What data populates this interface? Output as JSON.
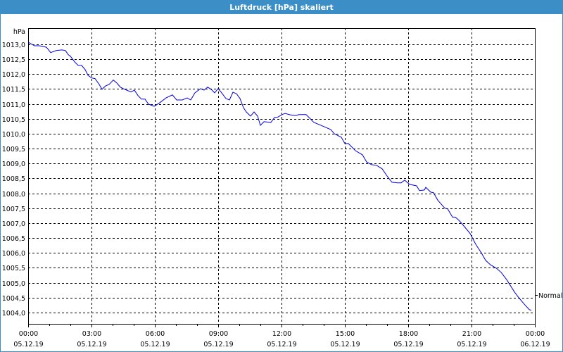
{
  "window": {
    "title": "Luftdruck [hPa] skaliert"
  },
  "colors": {
    "titlebar": "#3c8fc6",
    "line": "#0000e0",
    "grid": "#000000"
  },
  "chart_data": {
    "type": "line",
    "title": "Luftdruck [hPa] skaliert",
    "ylabel": "hPa",
    "xlabel": "",
    "grid": true,
    "grid_style": "dashed",
    "xlim": [
      "05.12.19 00:00",
      "06.12.19 00:00"
    ],
    "ylim": [
      1003.62,
      1013.54
    ],
    "x_ticks": [
      {
        "time": "00:00",
        "date": "05.12.19"
      },
      {
        "time": "03:00",
        "date": "05.12.19"
      },
      {
        "time": "06:00",
        "date": "05.12.19"
      },
      {
        "time": "09:00",
        "date": "05.12.19"
      },
      {
        "time": "12:00",
        "date": "05.12.19"
      },
      {
        "time": "15:00",
        "date": "05.12.19"
      },
      {
        "time": "18:00",
        "date": "05.12.19"
      },
      {
        "time": "21:00",
        "date": "05.12.19"
      },
      {
        "time": "00:00",
        "date": "06.12.19"
      }
    ],
    "y_ticks": [
      "1004,0",
      "1004,5",
      "1005,0",
      "1005,5",
      "1006,0",
      "1006,5",
      "1007,0",
      "1007,5",
      "1008,0",
      "1008,5",
      "1009,0",
      "1009,5",
      "1010,0",
      "1010,5",
      "1011,0",
      "1011,5",
      "1012,0",
      "1012,5",
      "1013,0"
    ],
    "annotations": [
      {
        "label": "Normal",
        "value": 1004.6,
        "side": "right"
      }
    ],
    "series": [
      {
        "date": "05.12.19",
        "points": [
          [
            "00:00",
            1013.07
          ],
          [
            "00:18",
            1012.95
          ],
          [
            "00:32",
            1012.95
          ],
          [
            "00:52",
            1012.9
          ],
          [
            "01:04",
            1012.72
          ],
          [
            "01:20",
            1012.79
          ],
          [
            "01:36",
            1012.81
          ],
          [
            "01:46",
            1012.79
          ],
          [
            "01:54",
            1012.65
          ],
          [
            "02:00",
            1012.6
          ],
          [
            "02:12",
            1012.41
          ],
          [
            "02:22",
            1012.29
          ],
          [
            "02:32",
            1012.29
          ],
          [
            "02:42",
            1012.15
          ],
          [
            "02:50",
            1011.96
          ],
          [
            "03:00",
            1011.87
          ],
          [
            "03:10",
            1011.85
          ],
          [
            "03:22",
            1011.65
          ],
          [
            "03:30",
            1011.49
          ],
          [
            "03:40",
            1011.6
          ],
          [
            "03:50",
            1011.65
          ],
          [
            "04:02",
            1011.8
          ],
          [
            "04:12",
            1011.7
          ],
          [
            "04:22",
            1011.56
          ],
          [
            "04:34",
            1011.49
          ],
          [
            "04:52",
            1011.4
          ],
          [
            "05:02",
            1011.46
          ],
          [
            "05:12",
            1011.28
          ],
          [
            "05:22",
            1011.16
          ],
          [
            "05:32",
            1011.16
          ],
          [
            "05:42",
            1010.99
          ],
          [
            "05:58",
            1010.92
          ],
          [
            "06:12",
            1011.02
          ],
          [
            "06:32",
            1011.2
          ],
          [
            "06:50",
            1011.3
          ],
          [
            "07:02",
            1011.13
          ],
          [
            "07:18",
            1011.13
          ],
          [
            "07:32",
            1011.2
          ],
          [
            "07:42",
            1011.13
          ],
          [
            "07:54",
            1011.37
          ],
          [
            "08:10",
            1011.51
          ],
          [
            "08:20",
            1011.46
          ],
          [
            "08:30",
            1011.56
          ],
          [
            "08:40",
            1011.49
          ],
          [
            "08:50",
            1011.37
          ],
          [
            "09:00",
            1011.51
          ],
          [
            "09:10",
            1011.37
          ],
          [
            "09:22",
            1011.18
          ],
          [
            "09:32",
            1011.13
          ],
          [
            "09:42",
            1011.39
          ],
          [
            "09:52",
            1011.34
          ],
          [
            "10:02",
            1011.18
          ],
          [
            "10:12",
            1010.87
          ],
          [
            "10:20",
            1010.73
          ],
          [
            "10:32",
            1010.59
          ],
          [
            "10:42",
            1010.73
          ],
          [
            "10:52",
            1010.59
          ],
          [
            "11:00",
            1010.28
          ],
          [
            "11:10",
            1010.4
          ],
          [
            "11:30",
            1010.38
          ],
          [
            "11:40",
            1010.54
          ],
          [
            "11:50",
            1010.56
          ],
          [
            "12:00",
            1010.63
          ],
          [
            "12:10",
            1010.68
          ],
          [
            "12:26",
            1010.63
          ],
          [
            "12:40",
            1010.61
          ],
          [
            "12:50",
            1010.64
          ],
          [
            "13:10",
            1010.64
          ],
          [
            "13:32",
            1010.38
          ],
          [
            "14:00",
            1010.24
          ],
          [
            "14:20",
            1010.14
          ],
          [
            "14:30",
            1010.0
          ],
          [
            "14:50",
            1009.88
          ],
          [
            "15:00",
            1009.67
          ],
          [
            "15:10",
            1009.67
          ],
          [
            "15:30",
            1009.43
          ],
          [
            "15:50",
            1009.29
          ],
          [
            "16:02",
            1009.05
          ],
          [
            "16:16",
            1008.96
          ],
          [
            "16:30",
            1008.94
          ],
          [
            "16:46",
            1008.82
          ],
          [
            "17:00",
            1008.58
          ],
          [
            "17:14",
            1008.37
          ],
          [
            "17:30",
            1008.35
          ],
          [
            "17:40",
            1008.35
          ],
          [
            "17:50",
            1008.44
          ],
          [
            "18:04",
            1008.3
          ],
          [
            "18:24",
            1008.25
          ],
          [
            "18:32",
            1008.09
          ],
          [
            "18:46",
            1008.11
          ],
          [
            "18:50",
            1008.2
          ],
          [
            "19:04",
            1008.04
          ],
          [
            "19:12",
            1008.02
          ],
          [
            "19:24",
            1007.77
          ],
          [
            "19:44",
            1007.5
          ],
          [
            "19:52",
            1007.48
          ],
          [
            "20:06",
            1007.2
          ],
          [
            "20:14",
            1007.2
          ],
          [
            "20:26",
            1007.07
          ],
          [
            "20:40",
            1006.88
          ],
          [
            "20:56",
            1006.65
          ],
          [
            "21:12",
            1006.29
          ],
          [
            "21:28",
            1006.0
          ],
          [
            "21:40",
            1005.75
          ],
          [
            "21:54",
            1005.6
          ],
          [
            "22:10",
            1005.49
          ],
          [
            "22:24",
            1005.35
          ],
          [
            "22:40",
            1005.1
          ],
          [
            "23:02",
            1004.69
          ],
          [
            "23:14",
            1004.5
          ],
          [
            "23:30",
            1004.28
          ],
          [
            "23:44",
            1004.1
          ],
          [
            "23:50",
            1004.07
          ]
        ]
      }
    ]
  }
}
